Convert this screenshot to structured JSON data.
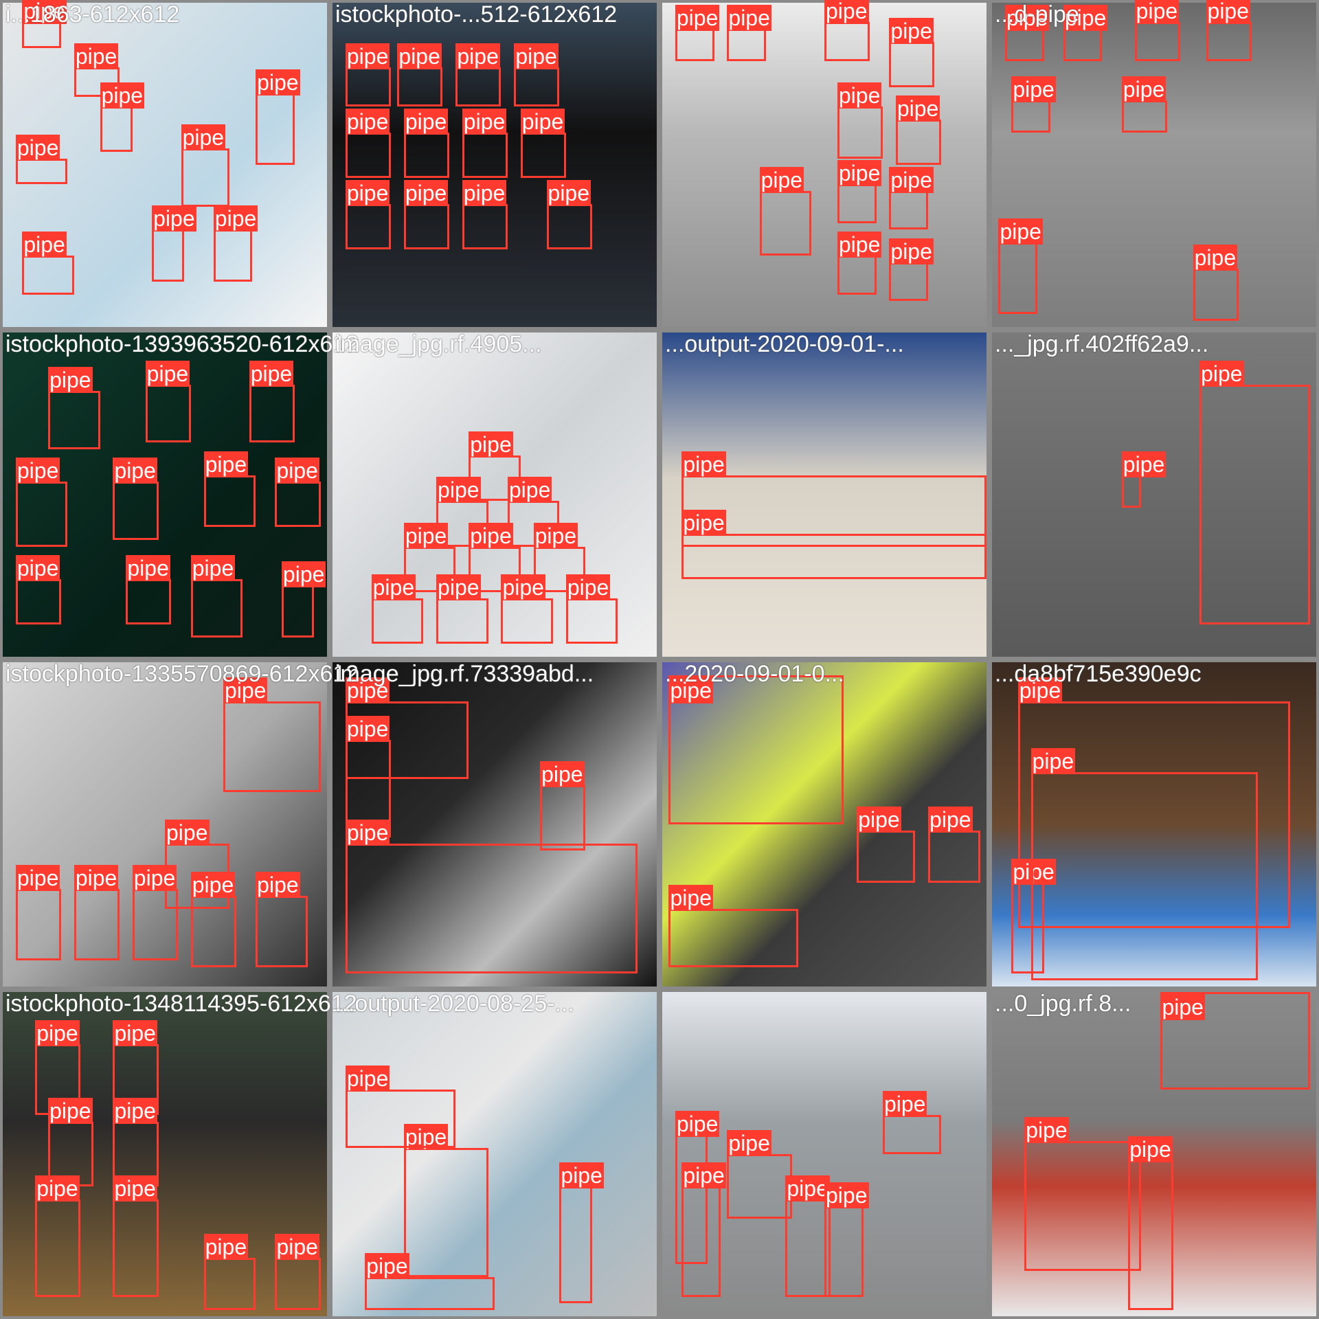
{
  "class_label": "pipe",
  "accent": "#ff3b30",
  "tiles": [
    {
      "title": "i...1863-612x612",
      "bg": "linear-gradient(135deg,#e8e8e8,#bcd7e6 60%,#f4f4f4)",
      "boxes": [
        [
          6,
          6,
          12,
          8
        ],
        [
          22,
          20,
          14,
          9
        ],
        [
          4,
          48,
          16,
          8
        ],
        [
          30,
          32,
          10,
          14
        ],
        [
          55,
          45,
          15,
          18
        ],
        [
          78,
          28,
          12,
          22
        ],
        [
          46,
          70,
          10,
          16
        ],
        [
          65,
          70,
          12,
          16
        ],
        [
          6,
          78,
          16,
          12
        ]
      ]
    },
    {
      "title": "istockphoto-...512-612x612",
      "bg": "linear-gradient(180deg,#3a4b5c,#111 40%,#2a3038)",
      "boxes": [
        [
          4,
          20,
          14,
          12
        ],
        [
          20,
          20,
          14,
          12
        ],
        [
          38,
          20,
          14,
          12
        ],
        [
          56,
          20,
          14,
          12
        ],
        [
          4,
          40,
          14,
          14
        ],
        [
          22,
          40,
          14,
          14
        ],
        [
          40,
          40,
          14,
          14
        ],
        [
          58,
          40,
          14,
          14
        ],
        [
          4,
          62,
          14,
          14
        ],
        [
          22,
          62,
          14,
          14
        ],
        [
          40,
          62,
          14,
          14
        ],
        [
          66,
          62,
          14,
          14
        ]
      ]
    },
    {
      "title": "",
      "bg": "linear-gradient(180deg,#ececec 0%,#b8b8b8 40%,#8d8d8d 100%)",
      "boxes": [
        [
          30,
          58,
          16,
          20
        ],
        [
          4,
          8,
          12,
          10
        ],
        [
          20,
          8,
          12,
          10
        ],
        [
          50,
          6,
          14,
          12
        ],
        [
          70,
          12,
          14,
          14
        ],
        [
          54,
          32,
          14,
          16
        ],
        [
          72,
          36,
          14,
          14
        ],
        [
          54,
          56,
          12,
          12
        ],
        [
          70,
          58,
          12,
          12
        ],
        [
          54,
          78,
          12,
          12
        ],
        [
          70,
          80,
          12,
          12
        ]
      ]
    },
    {
      "title": "...d-pipe",
      "bg": "linear-gradient(180deg,#6a6a6a 0%,#9a9a9a 40%,#7d7d7d 100%)",
      "boxes": [
        [
          2,
          74,
          12,
          22
        ],
        [
          62,
          82,
          14,
          16
        ],
        [
          4,
          8,
          12,
          10
        ],
        [
          22,
          8,
          12,
          10
        ],
        [
          44,
          6,
          14,
          12
        ],
        [
          66,
          6,
          14,
          12
        ],
        [
          6,
          30,
          12,
          10
        ],
        [
          40,
          30,
          14,
          10
        ]
      ]
    },
    {
      "title": "istockphoto-1393963520-612x612",
      "bg": "linear-gradient(135deg,#0f3a2c,#062018 60%,#0c1e18)",
      "boxes": [
        [
          14,
          18,
          16,
          18
        ],
        [
          44,
          16,
          14,
          18
        ],
        [
          76,
          16,
          14,
          18
        ],
        [
          4,
          46,
          16,
          20
        ],
        [
          34,
          46,
          14,
          18
        ],
        [
          62,
          44,
          16,
          16
        ],
        [
          84,
          46,
          14,
          14
        ],
        [
          4,
          76,
          14,
          14
        ],
        [
          38,
          76,
          14,
          14
        ],
        [
          58,
          76,
          16,
          18
        ],
        [
          86,
          78,
          10,
          16
        ]
      ]
    },
    {
      "title": "image_jpg.rf.4905...",
      "bg": "linear-gradient(135deg,#f7f7f7,#cfd3d6 50%,#f0f0f0)",
      "boxes": [
        [
          42,
          38,
          16,
          14
        ],
        [
          32,
          52,
          16,
          14
        ],
        [
          54,
          52,
          16,
          14
        ],
        [
          22,
          66,
          16,
          14
        ],
        [
          42,
          66,
          16,
          14
        ],
        [
          62,
          66,
          16,
          14
        ],
        [
          12,
          82,
          16,
          14
        ],
        [
          32,
          82,
          16,
          14
        ],
        [
          52,
          82,
          16,
          14
        ],
        [
          72,
          82,
          16,
          14
        ]
      ]
    },
    {
      "title": "...output-2020-09-01-...",
      "bg": "linear-gradient(180deg,#2a4a8a 0%,#d8d2c6 45%,#e6e0d6 100%)",
      "boxes": [
        [
          6,
          44,
          94,
          22
        ],
        [
          6,
          62,
          94,
          14
        ]
      ]
    },
    {
      "title": "..._jpg.rf.402ff62a9...",
      "bg": "linear-gradient(180deg,#7a7a7a 0%,#5a5a5a 100%)",
      "boxes": [
        [
          40,
          44,
          6,
          10
        ],
        [
          64,
          16,
          34,
          74
        ]
      ]
    },
    {
      "title": "istockphoto-1335570869-612x612",
      "bg": "linear-gradient(135deg,#d8d8d8,#aaaaaa 50%,#2a2a2a)",
      "boxes": [
        [
          68,
          12,
          30,
          28
        ],
        [
          50,
          56,
          20,
          20
        ],
        [
          4,
          70,
          14,
          22
        ],
        [
          22,
          70,
          14,
          22
        ],
        [
          40,
          70,
          14,
          22
        ],
        [
          58,
          72,
          14,
          22
        ],
        [
          78,
          72,
          16,
          22
        ]
      ]
    },
    {
      "title": "image_jpg.rf.73339abd...",
      "bg": "linear-gradient(135deg,#111,#2a2a2a 40%,#bcbcbc 70%,#111)",
      "boxes": [
        [
          4,
          12,
          38,
          24
        ],
        [
          4,
          24,
          14,
          30
        ],
        [
          64,
          38,
          14,
          20
        ],
        [
          4,
          56,
          90,
          40
        ]
      ]
    },
    {
      "title": "...2020-09-01-0...",
      "bg": "linear-gradient(135deg,#5a58b0,#d8e84a 40%,#3a3a3a 60%,#555)",
      "boxes": [
        [
          2,
          4,
          54,
          46
        ],
        [
          60,
          52,
          18,
          16
        ],
        [
          82,
          52,
          16,
          16
        ],
        [
          2,
          76,
          40,
          18
        ]
      ]
    },
    {
      "title": "...da8bf715e390e9c",
      "bg": "linear-gradient(180deg,#3a2a20 0%,#6a4a30 50%,#3a7ac8 78%,#d8e4f0 100%)",
      "boxes": [
        [
          8,
          12,
          84,
          70
        ],
        [
          6,
          68,
          10,
          28
        ],
        [
          12,
          34,
          70,
          64
        ]
      ]
    },
    {
      "title": "istockphoto-1348114395-612x612",
      "bg": "linear-gradient(180deg,#3a4a3a 0%,#2a2a2a 40%,#8a6a3a 100%)",
      "boxes": [
        [
          10,
          16,
          14,
          22
        ],
        [
          34,
          16,
          14,
          22
        ],
        [
          14,
          40,
          14,
          20
        ],
        [
          34,
          40,
          14,
          20
        ],
        [
          10,
          64,
          14,
          30
        ],
        [
          34,
          64,
          14,
          30
        ],
        [
          62,
          82,
          16,
          16
        ],
        [
          84,
          82,
          14,
          16
        ]
      ]
    },
    {
      "title": "...output-2020-08-25-...",
      "bg": "linear-gradient(135deg,#d0d6da,#e8e8e8 40%,#9ab8c8 60%,#bdbdbd)",
      "boxes": [
        [
          22,
          48,
          26,
          40
        ],
        [
          4,
          30,
          34,
          18
        ],
        [
          70,
          60,
          10,
          36
        ],
        [
          10,
          88,
          40,
          10
        ]
      ]
    },
    {
      "title": "",
      "bg": "linear-gradient(180deg,#e4e8ec 0%,#9aa0a4 40%,#8a8a8a 100%)",
      "boxes": [
        [
          4,
          44,
          10,
          40
        ],
        [
          20,
          50,
          20,
          20
        ],
        [
          6,
          60,
          12,
          34
        ],
        [
          38,
          64,
          14,
          30
        ],
        [
          50,
          66,
          12,
          28
        ],
        [
          68,
          38,
          18,
          12
        ]
      ]
    },
    {
      "title": "...0_jpg.rf.8...",
      "bg": "linear-gradient(180deg,#8a8a8a 0%,#7a7a7a 40%,#c04030 60%,#e8e8e8 100%)",
      "boxes": [
        [
          10,
          46,
          36,
          40
        ],
        [
          42,
          52,
          14,
          46
        ],
        [
          52,
          0,
          46,
          30
        ]
      ]
    }
  ]
}
